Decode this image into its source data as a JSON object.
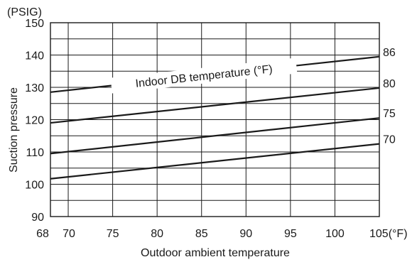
{
  "chart_data": {
    "type": "line",
    "y_unit": "(PSIG)",
    "ylabel": "Suction pressure",
    "xlabel": "Outdoor ambient temperature",
    "annotation": "Indoor DB temperature (°F)",
    "xlim": [
      68,
      105
    ],
    "ylim": [
      90,
      150
    ],
    "grid": true,
    "x_ticks": [
      {
        "value": 68,
        "label": "68"
      },
      {
        "value": 70,
        "label": "70"
      },
      {
        "value": 75,
        "label": "75"
      },
      {
        "value": 80,
        "label": "80"
      },
      {
        "value": 85,
        "label": "85"
      },
      {
        "value": 90,
        "label": "90"
      },
      {
        "value": 95,
        "label": "95"
      },
      {
        "value": 100,
        "label": "100"
      },
      {
        "value": 105,
        "label": "105(°F)"
      }
    ],
    "y_ticks": [
      {
        "value": 90,
        "label": "90"
      },
      {
        "value": 100,
        "label": "100"
      },
      {
        "value": 110,
        "label": "110"
      },
      {
        "value": 120,
        "label": "120"
      },
      {
        "value": 130,
        "label": "130"
      },
      {
        "value": 140,
        "label": "140"
      },
      {
        "value": 150,
        "label": "150"
      }
    ],
    "x_grid": [
      68,
      70,
      75,
      80,
      85,
      90,
      95,
      100,
      105
    ],
    "y_grid": [
      90,
      95,
      100,
      105,
      110,
      115,
      120,
      125,
      130,
      135,
      140,
      145,
      150
    ],
    "series": [
      {
        "name": "86",
        "x": [
          68,
          105
        ],
        "y": [
          128.5,
          139.5
        ]
      },
      {
        "name": "80",
        "x": [
          68,
          105
        ],
        "y": [
          119.0,
          129.8
        ]
      },
      {
        "name": "75",
        "x": [
          68,
          105
        ],
        "y": [
          109.5,
          120.5
        ]
      },
      {
        "name": "70",
        "x": [
          68,
          105
        ],
        "y": [
          101.7,
          112.5
        ]
      }
    ],
    "colors": {
      "line": "#1a1a1a",
      "grid": "#1a1a1a",
      "text": "#1a1a1a"
    }
  }
}
